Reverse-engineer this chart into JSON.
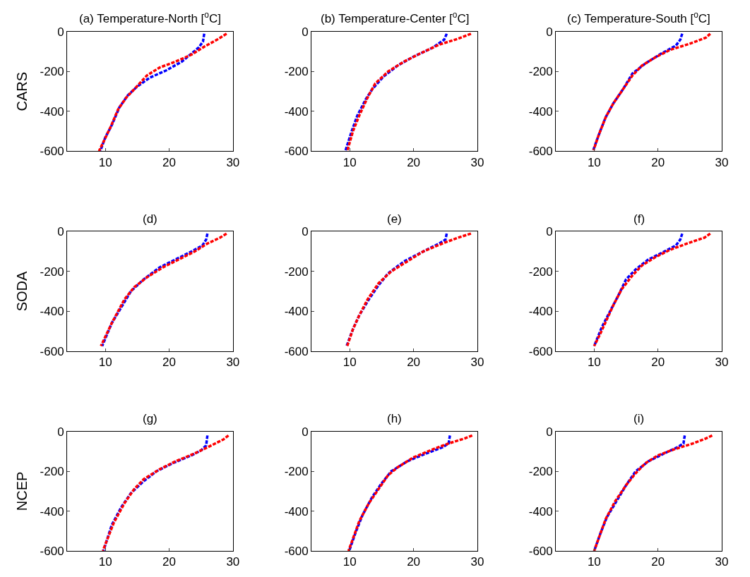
{
  "chart_data": [
    {
      "type": "line",
      "title": "(a) Temperature-North [$^{o}$C]",
      "ylabel": "CARS",
      "xlim": [
        4,
        30
      ],
      "xticks": [
        10,
        20,
        30
      ],
      "ylim": [
        -600,
        0
      ],
      "yticks": [
        -600,
        -400,
        -200,
        0
      ],
      "line_style": "dashed",
      "series": [
        {
          "color": "#0000ff",
          "x": [
            25.5,
            25.3,
            24.6,
            23.5,
            22,
            19.5,
            17,
            15,
            13.5,
            12.2,
            11,
            10,
            9.2
          ],
          "values": [
            -10,
            -50,
            -80,
            -110,
            -150,
            -195,
            -230,
            -275,
            -320,
            -380,
            -470,
            -530,
            -600
          ]
        },
        {
          "color": "#ff0000",
          "x": [
            29,
            27.5,
            25.5,
            23.5,
            21,
            18.5,
            16.5,
            14.5,
            13.3,
            12,
            10.8,
            9.9,
            9
          ],
          "values": [
            -10,
            -40,
            -75,
            -115,
            -150,
            -180,
            -220,
            -290,
            -330,
            -390,
            -480,
            -540,
            -600
          ]
        }
      ]
    },
    {
      "type": "line",
      "title": "(b) Temperature-Center [$^{o}$C]",
      "xlim": [
        4,
        30
      ],
      "xticks": [
        10,
        20,
        30
      ],
      "ylim": [
        -600,
        0
      ],
      "yticks": [
        -600,
        -400,
        -200,
        0
      ],
      "line_style": "dashed",
      "series": [
        {
          "color": "#0000ff",
          "x": [
            25.2,
            24.8,
            23,
            20,
            17.5,
            15.3,
            13.5,
            12.5,
            11.2,
            10.3,
            9.3
          ],
          "values": [
            -10,
            -40,
            -80,
            -125,
            -170,
            -225,
            -290,
            -340,
            -420,
            -500,
            -600
          ]
        },
        {
          "color": "#ff0000",
          "x": [
            29,
            27,
            24,
            21,
            18.5,
            16,
            14,
            12.8,
            11.5,
            10.5,
            9.6
          ],
          "values": [
            -10,
            -35,
            -65,
            -110,
            -150,
            -200,
            -260,
            -330,
            -420,
            -500,
            -600
          ]
        }
      ]
    },
    {
      "type": "line",
      "title": "(c) Temperature-South [$^{o}$C]",
      "xlim": [
        4,
        30
      ],
      "xticks": [
        10,
        20,
        30
      ],
      "ylim": [
        -600,
        0
      ],
      "yticks": [
        -600,
        -400,
        -200,
        0
      ],
      "line_style": "dashed",
      "series": [
        {
          "color": "#0000ff",
          "x": [
            23.8,
            23.5,
            22.8,
            20.5,
            18,
            16,
            14.5,
            13,
            11.8,
            10.7,
            9.8
          ],
          "values": [
            -10,
            -40,
            -70,
            -110,
            -160,
            -210,
            -290,
            -360,
            -430,
            -520,
            -600
          ]
        },
        {
          "color": "#ff0000",
          "x": [
            28.2,
            27.5,
            25,
            22,
            19.5,
            17.5,
            16,
            14.5,
            13,
            11.8,
            10.7,
            9.9
          ],
          "values": [
            -10,
            -30,
            -60,
            -90,
            -130,
            -170,
            -220,
            -290,
            -360,
            -430,
            -520,
            -595
          ]
        }
      ]
    },
    {
      "type": "line",
      "title": "(d)",
      "ylabel": "SODA",
      "xlim": [
        4,
        30
      ],
      "xticks": [
        10,
        20,
        30
      ],
      "ylim": [
        -600,
        0
      ],
      "yticks": [
        -600,
        -400,
        -200,
        0
      ],
      "line_style": "dashed",
      "series": [
        {
          "color": "#0000ff",
          "x": [
            26,
            25.8,
            25.2,
            23.5,
            21,
            18.5,
            16,
            14,
            12.5,
            11,
            9.5
          ],
          "values": [
            -10,
            -40,
            -70,
            -100,
            -140,
            -180,
            -240,
            -300,
            -380,
            -460,
            -575
          ]
        },
        {
          "color": "#ff0000",
          "x": [
            29,
            28,
            26,
            24,
            21.5,
            19,
            16.5,
            14.5,
            13,
            12,
            11,
            9.3
          ],
          "values": [
            -10,
            -30,
            -60,
            -100,
            -140,
            -180,
            -230,
            -280,
            -340,
            -400,
            -460,
            -575
          ]
        }
      ]
    },
    {
      "type": "line",
      "title": "(e)",
      "xlim": [
        4,
        30
      ],
      "xticks": [
        10,
        20,
        30
      ],
      "ylim": [
        -600,
        0
      ],
      "yticks": [
        -600,
        -400,
        -200,
        0
      ],
      "line_style": "dashed",
      "series": [
        {
          "color": "#0000ff",
          "x": [
            25.2,
            25,
            24,
            21.5,
            18.5,
            16,
            14.5,
            13,
            11.5,
            10.5,
            9.5
          ],
          "values": [
            -10,
            -40,
            -60,
            -100,
            -150,
            -210,
            -270,
            -340,
            -420,
            -490,
            -575
          ]
        },
        {
          "color": "#ff0000",
          "x": [
            29,
            27,
            24.5,
            21.5,
            19,
            16.5,
            14.5,
            12.8,
            11.5,
            10.5,
            9.6
          ],
          "values": [
            -10,
            -30,
            -60,
            -100,
            -150,
            -200,
            -260,
            -340,
            -420,
            -490,
            -575
          ]
        }
      ]
    },
    {
      "type": "line",
      "title": "(f)",
      "xlim": [
        4,
        30
      ],
      "xticks": [
        10,
        20,
        30
      ],
      "ylim": [
        -600,
        0
      ],
      "yticks": [
        -600,
        -400,
        -200,
        0
      ],
      "line_style": "dashed",
      "series": [
        {
          "color": "#0000ff",
          "x": [
            23.8,
            23.5,
            22.8,
            21,
            18.5,
            16.5,
            15,
            13.8,
            12.5,
            11.2,
            10
          ],
          "values": [
            -10,
            -40,
            -70,
            -100,
            -140,
            -190,
            -240,
            -320,
            -400,
            -480,
            -575
          ]
        },
        {
          "color": "#ff0000",
          "x": [
            28.2,
            27.3,
            25,
            22,
            19.5,
            17.5,
            16,
            14.3,
            13,
            12,
            11,
            10
          ],
          "values": [
            -10,
            -30,
            -55,
            -90,
            -130,
            -170,
            -220,
            -290,
            -370,
            -440,
            -510,
            -575
          ]
        }
      ]
    },
    {
      "type": "line",
      "title": "(g)",
      "ylabel": "NCEP",
      "xlim": [
        4,
        30
      ],
      "xticks": [
        10,
        20,
        30
      ],
      "ylim": [
        -600,
        0
      ],
      "yticks": [
        -600,
        -400,
        -200,
        0
      ],
      "line_style": "dashed",
      "series": [
        {
          "color": "#0000ff",
          "x": [
            26,
            25.8,
            25,
            23.5,
            20.5,
            18,
            16,
            14,
            12.5,
            11,
            9.7
          ],
          "values": [
            -20,
            -70,
            -95,
            -120,
            -160,
            -200,
            -250,
            -310,
            -380,
            -470,
            -600
          ]
        },
        {
          "color": "#ff0000",
          "x": [
            29.3,
            28.5,
            26,
            24,
            21,
            18.5,
            16,
            14.5,
            13,
            11.3,
            9.6
          ],
          "values": [
            -20,
            -40,
            -80,
            -110,
            -150,
            -190,
            -240,
            -290,
            -360,
            -460,
            -600
          ]
        }
      ]
    },
    {
      "type": "line",
      "title": "(h)",
      "xlim": [
        4,
        30
      ],
      "xticks": [
        10,
        20,
        30
      ],
      "ylim": [
        -600,
        0
      ],
      "yticks": [
        -600,
        -400,
        -200,
        0
      ],
      "line_style": "dashed",
      "series": [
        {
          "color": "#0000ff",
          "x": [
            25.7,
            25.5,
            24.5,
            22,
            19,
            16.5,
            15,
            13.5,
            12,
            11,
            9.9
          ],
          "values": [
            -20,
            -60,
            -80,
            -110,
            -150,
            -200,
            -260,
            -330,
            -420,
            -500,
            -600
          ]
        },
        {
          "color": "#ff0000",
          "x": [
            29.2,
            28,
            25.5,
            23,
            20,
            17.5,
            16,
            14.5,
            13,
            11.5,
            9.8
          ],
          "values": [
            -20,
            -35,
            -60,
            -90,
            -130,
            -180,
            -220,
            -290,
            -360,
            -450,
            -600
          ]
        }
      ]
    },
    {
      "type": "line",
      "title": "(i)",
      "xlim": [
        4,
        30
      ],
      "xticks": [
        10,
        20,
        30
      ],
      "ylim": [
        -600,
        0
      ],
      "yticks": [
        -600,
        -400,
        -200,
        0
      ],
      "line_style": "dashed",
      "series": [
        {
          "color": "#0000ff",
          "x": [
            24.2,
            24,
            23,
            21,
            18.5,
            16.5,
            15,
            13.5,
            12,
            11,
            10
          ],
          "values": [
            -20,
            -60,
            -80,
            -110,
            -150,
            -200,
            -270,
            -350,
            -430,
            -510,
            -600
          ]
        },
        {
          "color": "#ff0000",
          "x": [
            28.5,
            27.5,
            25.5,
            22.5,
            20,
            18,
            16.5,
            15,
            13.3,
            11.8,
            10
          ],
          "values": [
            -20,
            -35,
            -60,
            -90,
            -120,
            -160,
            -210,
            -270,
            -350,
            -440,
            -600
          ]
        }
      ]
    }
  ]
}
